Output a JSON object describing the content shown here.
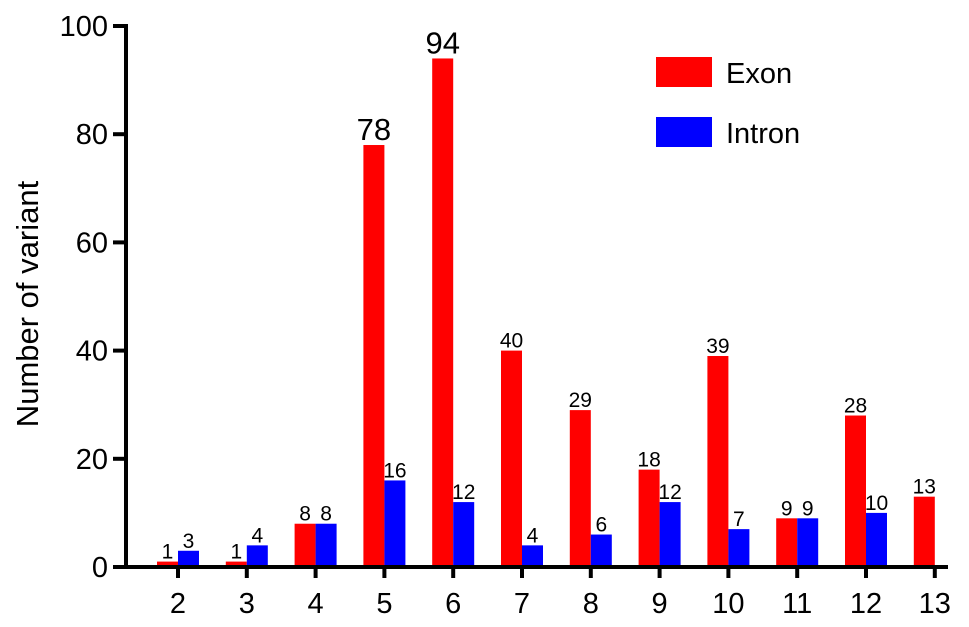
{
  "chart_data": {
    "type": "bar",
    "title": "",
    "xlabel": "",
    "ylabel": "Number of variant",
    "ylim": [
      0,
      100
    ],
    "yticks": [
      0,
      20,
      40,
      60,
      80,
      100
    ],
    "grid": false,
    "legend_position": "top-right",
    "categories": [
      "2",
      "3",
      "4",
      "5",
      "6",
      "7",
      "8",
      "9",
      "10",
      "11",
      "12",
      "13"
    ],
    "series": [
      {
        "name": "Exon",
        "color": "#ff0000",
        "values": [
          1,
          1,
          8,
          78,
          94,
          40,
          29,
          18,
          39,
          9,
          28,
          13
        ]
      },
      {
        "name": "Intron",
        "color": "#0000ff",
        "values": [
          3,
          4,
          8,
          16,
          12,
          4,
          6,
          12,
          7,
          9,
          10,
          null
        ]
      }
    ]
  }
}
